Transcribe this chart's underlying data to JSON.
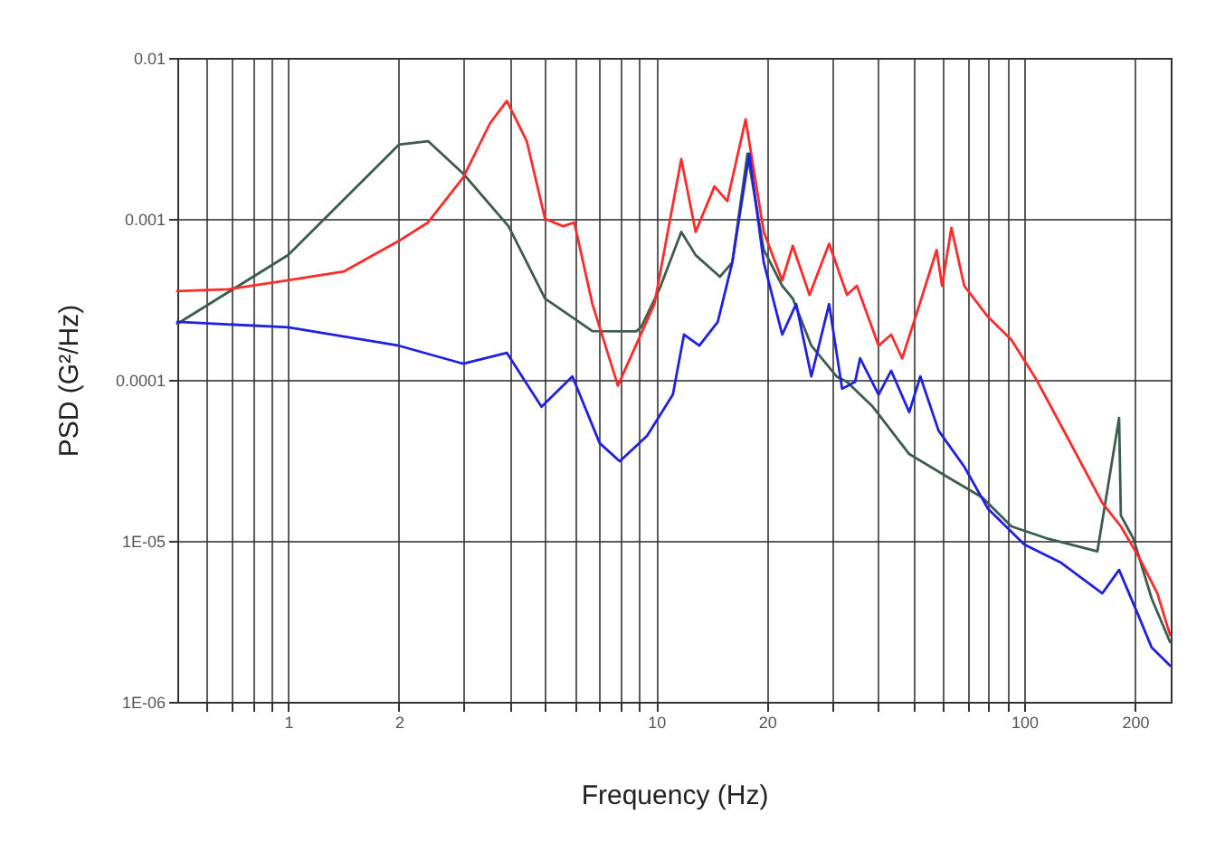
{
  "chart_data": {
    "type": "line",
    "xlabel": "Frequency (Hz)",
    "ylabel": "PSD (G²/Hz)",
    "log": "xy",
    "grid": true,
    "legend": false,
    "line_style": "solid",
    "marker": "none",
    "xlim": [
      0.5,
      250
    ],
    "ylim": [
      1e-06,
      0.01
    ],
    "xticks": [
      {
        "value": 0.6,
        "label": null
      },
      {
        "value": 0.7,
        "label": null
      },
      {
        "value": 0.8,
        "label": null
      },
      {
        "value": 0.9,
        "label": null
      },
      1,
      2,
      {
        "value": 3,
        "label": null
      },
      {
        "value": 4,
        "label": null
      },
      {
        "value": 5,
        "label": null
      },
      {
        "value": 6,
        "label": null
      },
      {
        "value": 7,
        "label": null
      },
      {
        "value": 8,
        "label": null
      },
      {
        "value": 9,
        "label": null
      },
      10,
      20,
      {
        "value": 30,
        "label": null
      },
      {
        "value": 40,
        "label": null
      },
      {
        "value": 50,
        "label": null
      },
      {
        "value": 60,
        "label": null
      },
      {
        "value": 70,
        "label": null
      },
      {
        "value": 80,
        "label": null
      },
      {
        "value": 90,
        "label": null
      },
      100,
      200
    ],
    "yticks": [
      {
        "value": 1e-06,
        "label": "1E-06"
      },
      {
        "value": 1e-05,
        "label": "1E-05"
      },
      0.0001,
      0.001,
      0.01
    ],
    "series": [
      {
        "color": "#3c5c4c",
        "x": [
          0.5,
          1,
          2.0,
          2.4,
          2.99,
          3.97,
          4.99,
          6.71,
          8.82,
          9.1,
          10.2,
          11.7,
          12.8,
          14.9,
          16.1,
          17.7,
          19.6,
          22.0,
          23.5,
          26.4,
          30.9,
          33.0,
          38.8,
          48.7,
          63.4,
          76.9,
          92.3,
          116,
          158,
          181,
          183,
          198,
          222,
          249
        ],
        "values": [
          0.000223,
          0.000596,
          0.00289,
          0.00304,
          0.00191,
          0.0009,
          0.00032,
          0.000201,
          0.0002,
          0.000212,
          0.000365,
          0.00083,
          0.000595,
          0.000437,
          0.000537,
          0.00254,
          0.000644,
          0.000384,
          0.00032,
          0.000163,
          0.000105,
          9.7e-05,
          6.8e-05,
          3.46e-05,
          2.41e-05,
          1.86e-05,
          1.23e-05,
          1.03e-05,
          8.6e-06,
          5.8e-05,
          1.44e-05,
          1.03e-05,
          4.37e-06,
          2.35e-06
        ]
      },
      {
        "color": "#ff2a2a",
        "x": [
          0.5,
          0.687,
          1,
          1.42,
          2.0,
          2.4,
          2.99,
          3.54,
          3.93,
          4.45,
          4.99,
          5.59,
          5.99,
          6.71,
          7.87,
          9.89,
          11.7,
          12.8,
          14.4,
          15.6,
          17.5,
          19.6,
          22.0,
          23.5,
          26.1,
          29.5,
          33.0,
          35.1,
          40.2,
          43.5,
          46.6,
          51.6,
          57.8,
          59.8,
          63.4,
          68.7,
          79.6,
          92.3,
          108,
          136,
          163,
          183,
          205,
          230,
          249
        ],
        "values": [
          0.000356,
          0.000365,
          0.000415,
          0.000472,
          0.00073,
          0.00095,
          0.00181,
          0.00394,
          0.0054,
          0.00304,
          0.001,
          0.0009,
          0.00095,
          0.000296,
          9.2e-05,
          0.000296,
          0.00235,
          0.00083,
          0.00159,
          0.00129,
          0.00415,
          0.00083,
          0.000415,
          0.00068,
          0.000337,
          0.0007,
          0.000337,
          0.000384,
          0.000163,
          0.000191,
          0.000136,
          0.000281,
          0.00064,
          0.000384,
          0.00088,
          0.000384,
          0.000247,
          0.000177,
          0.0001,
          3.74e-05,
          1.72e-05,
          1.23e-05,
          7.9e-06,
          4.72e-06,
          2.6e-06
        ]
      },
      {
        "color": "#2020e0",
        "x": [
          0.5,
          1,
          2.0,
          2.99,
          3.93,
          4.88,
          5.92,
          7.02,
          7.96,
          9.44,
          11.1,
          11.9,
          13.1,
          14.7,
          16.1,
          17.9,
          19.6,
          22.0,
          24.0,
          26.4,
          29.5,
          32.0,
          34.7,
          35.8,
          40.2,
          43.5,
          48.7,
          52.2,
          58.5,
          68.7,
          79.6,
          100,
          126,
          163,
          181,
          205,
          222,
          249
        ],
        "values": [
          0.000229,
          0.000212,
          0.000163,
          0.000126,
          0.000147,
          6.8e-05,
          0.000105,
          4.05e-05,
          3.12e-05,
          4.49e-05,
          8.1e-05,
          0.000191,
          0.000163,
          0.000229,
          0.000537,
          0.00254,
          0.000537,
          0.000191,
          0.000296,
          0.000105,
          0.000296,
          8.8e-05,
          9.7e-05,
          0.000136,
          8.1e-05,
          0.000114,
          6.3e-05,
          0.000105,
          4.84e-05,
          2.89e-05,
          1.59e-05,
          9.5e-06,
          7.3e-06,
          4.72e-06,
          6.6e-06,
          3.37e-06,
          2.17e-06,
          1.68e-06
        ]
      }
    ]
  }
}
